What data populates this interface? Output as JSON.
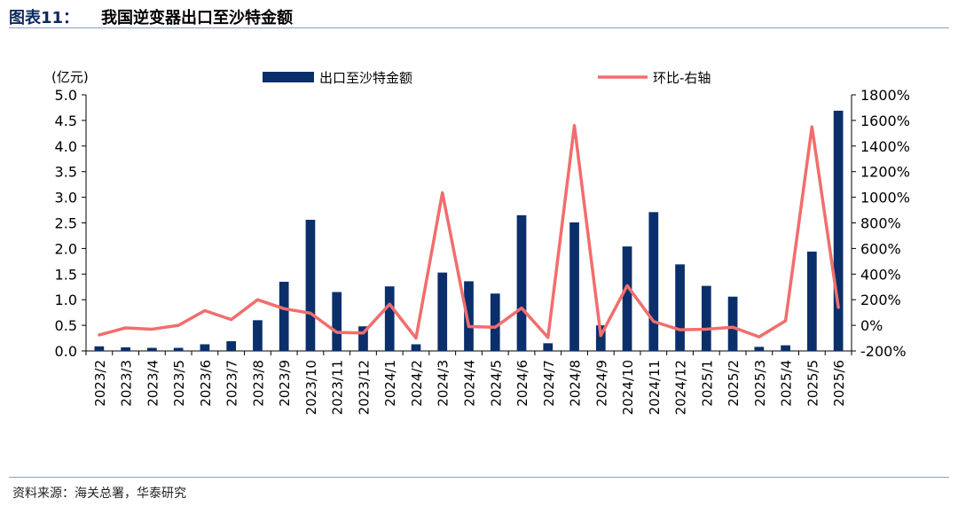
{
  "header": {
    "figure_label": "图表11：",
    "title": "我国逆变器出口至沙特金额"
  },
  "source": "资料来源：海关总署，华泰研究",
  "colors": {
    "bar": "#0a2f6b",
    "line": "#f26d6d",
    "rule": "#8aa0c0"
  },
  "chart_data": {
    "type": "bar+line",
    "title": "",
    "left_axis_unit": "(亿元)",
    "categories": [
      "2023/2",
      "2023/3",
      "2023/4",
      "2023/5",
      "2023/6",
      "2023/7",
      "2023/8",
      "2023/9",
      "2023/10",
      "2023/11",
      "2023/12",
      "2024/1",
      "2024/2",
      "2024/3",
      "2024/4",
      "2024/5",
      "2024/6",
      "2024/7",
      "2024/8",
      "2024/9",
      "2024/10",
      "2024/11",
      "2024/12",
      "2025/1",
      "2025/2",
      "2025/3",
      "2025/4",
      "2025/5",
      "2025/6"
    ],
    "series": [
      {
        "name": "出口至沙特金额",
        "type": "bar",
        "axis": "left",
        "values": [
          0.09,
          0.07,
          0.06,
          0.06,
          0.13,
          0.19,
          0.6,
          1.35,
          2.56,
          1.15,
          0.48,
          1.26,
          0.13,
          1.53,
          1.36,
          1.12,
          2.65,
          0.15,
          2.51,
          0.5,
          2.04,
          2.71,
          1.69,
          1.27,
          1.06,
          0.08,
          0.11,
          1.94,
          4.69
        ]
      },
      {
        "name": "环比-右轴",
        "type": "line",
        "axis": "right",
        "values": [
          -75,
          -20,
          -30,
          0,
          115,
          45,
          200,
          130,
          95,
          -55,
          -60,
          165,
          -100,
          1035,
          -10,
          -15,
          135,
          -95,
          1560,
          -80,
          310,
          30,
          -35,
          -30,
          -15,
          -90,
          35,
          1550,
          140
        ]
      }
    ],
    "left_axis": {
      "ylim": [
        0,
        5
      ],
      "ticks": [
        "0.0",
        "0.5",
        "1.0",
        "1.5",
        "2.0",
        "2.5",
        "3.0",
        "3.5",
        "4.0",
        "4.5",
        "5.0"
      ]
    },
    "right_axis": {
      "ylim": [
        -200,
        1800
      ],
      "ticks": [
        "-200%",
        "0%",
        "200%",
        "400%",
        "600%",
        "800%",
        "1000%",
        "1200%",
        "1400%",
        "1600%",
        "1800%"
      ]
    },
    "legend_position": "top",
    "grid": false
  }
}
